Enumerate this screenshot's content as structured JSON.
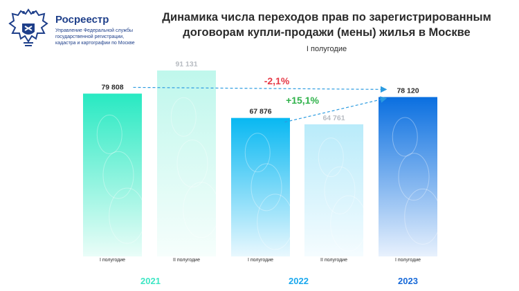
{
  "header": {
    "org_name": "Росреестр",
    "org_sub_lines": [
      "Управление Федеральной службы",
      "государственной регистрации,",
      "кадастра и картографии по Москве"
    ],
    "emblem_icon": "double-headed-eagle-emblem"
  },
  "colors": {
    "teal_dark": "#28e9c2",
    "teal_light": "#bff7ec",
    "blue_dark": "#08b8f2",
    "blue_light": "#b9ebfa",
    "royal_dark": "#0a6fe0",
    "year_teal": "#3ee6c4",
    "year_blue": "#1aa8ee",
    "year_royal": "#1769d8",
    "negative": "#e63946",
    "positive": "#2fb24a",
    "arrow": "#2b9be0"
  },
  "chart_data": {
    "type": "bar",
    "title": "Динамика числа переходов прав по зарегистрированным договорам купли-продажи (мены) жилья в Москве",
    "subtitle": "I полугодие",
    "categories": [
      "I полугодие",
      "II полугодие",
      "I полугодие",
      "II полугодие",
      "I полугодие"
    ],
    "years": [
      "2021",
      "2022",
      "2023"
    ],
    "values": [
      79808,
      91131,
      67876,
      64761,
      78120
    ],
    "value_labels": [
      "79 808",
      "91 131",
      "67 876",
      "64 761",
      "78 120"
    ],
    "year_of_bar": [
      0,
      0,
      1,
      1,
      2
    ],
    "highlighted": [
      true,
      false,
      true,
      false,
      true
    ],
    "ylim": [
      0,
      100000
    ],
    "annotations": [
      {
        "text": "-2,1%",
        "from_bar": 0,
        "to_bar": 4,
        "sign": "negative"
      },
      {
        "text": "+15,1%",
        "from_bar": 2,
        "to_bar": 4,
        "sign": "positive"
      }
    ]
  }
}
